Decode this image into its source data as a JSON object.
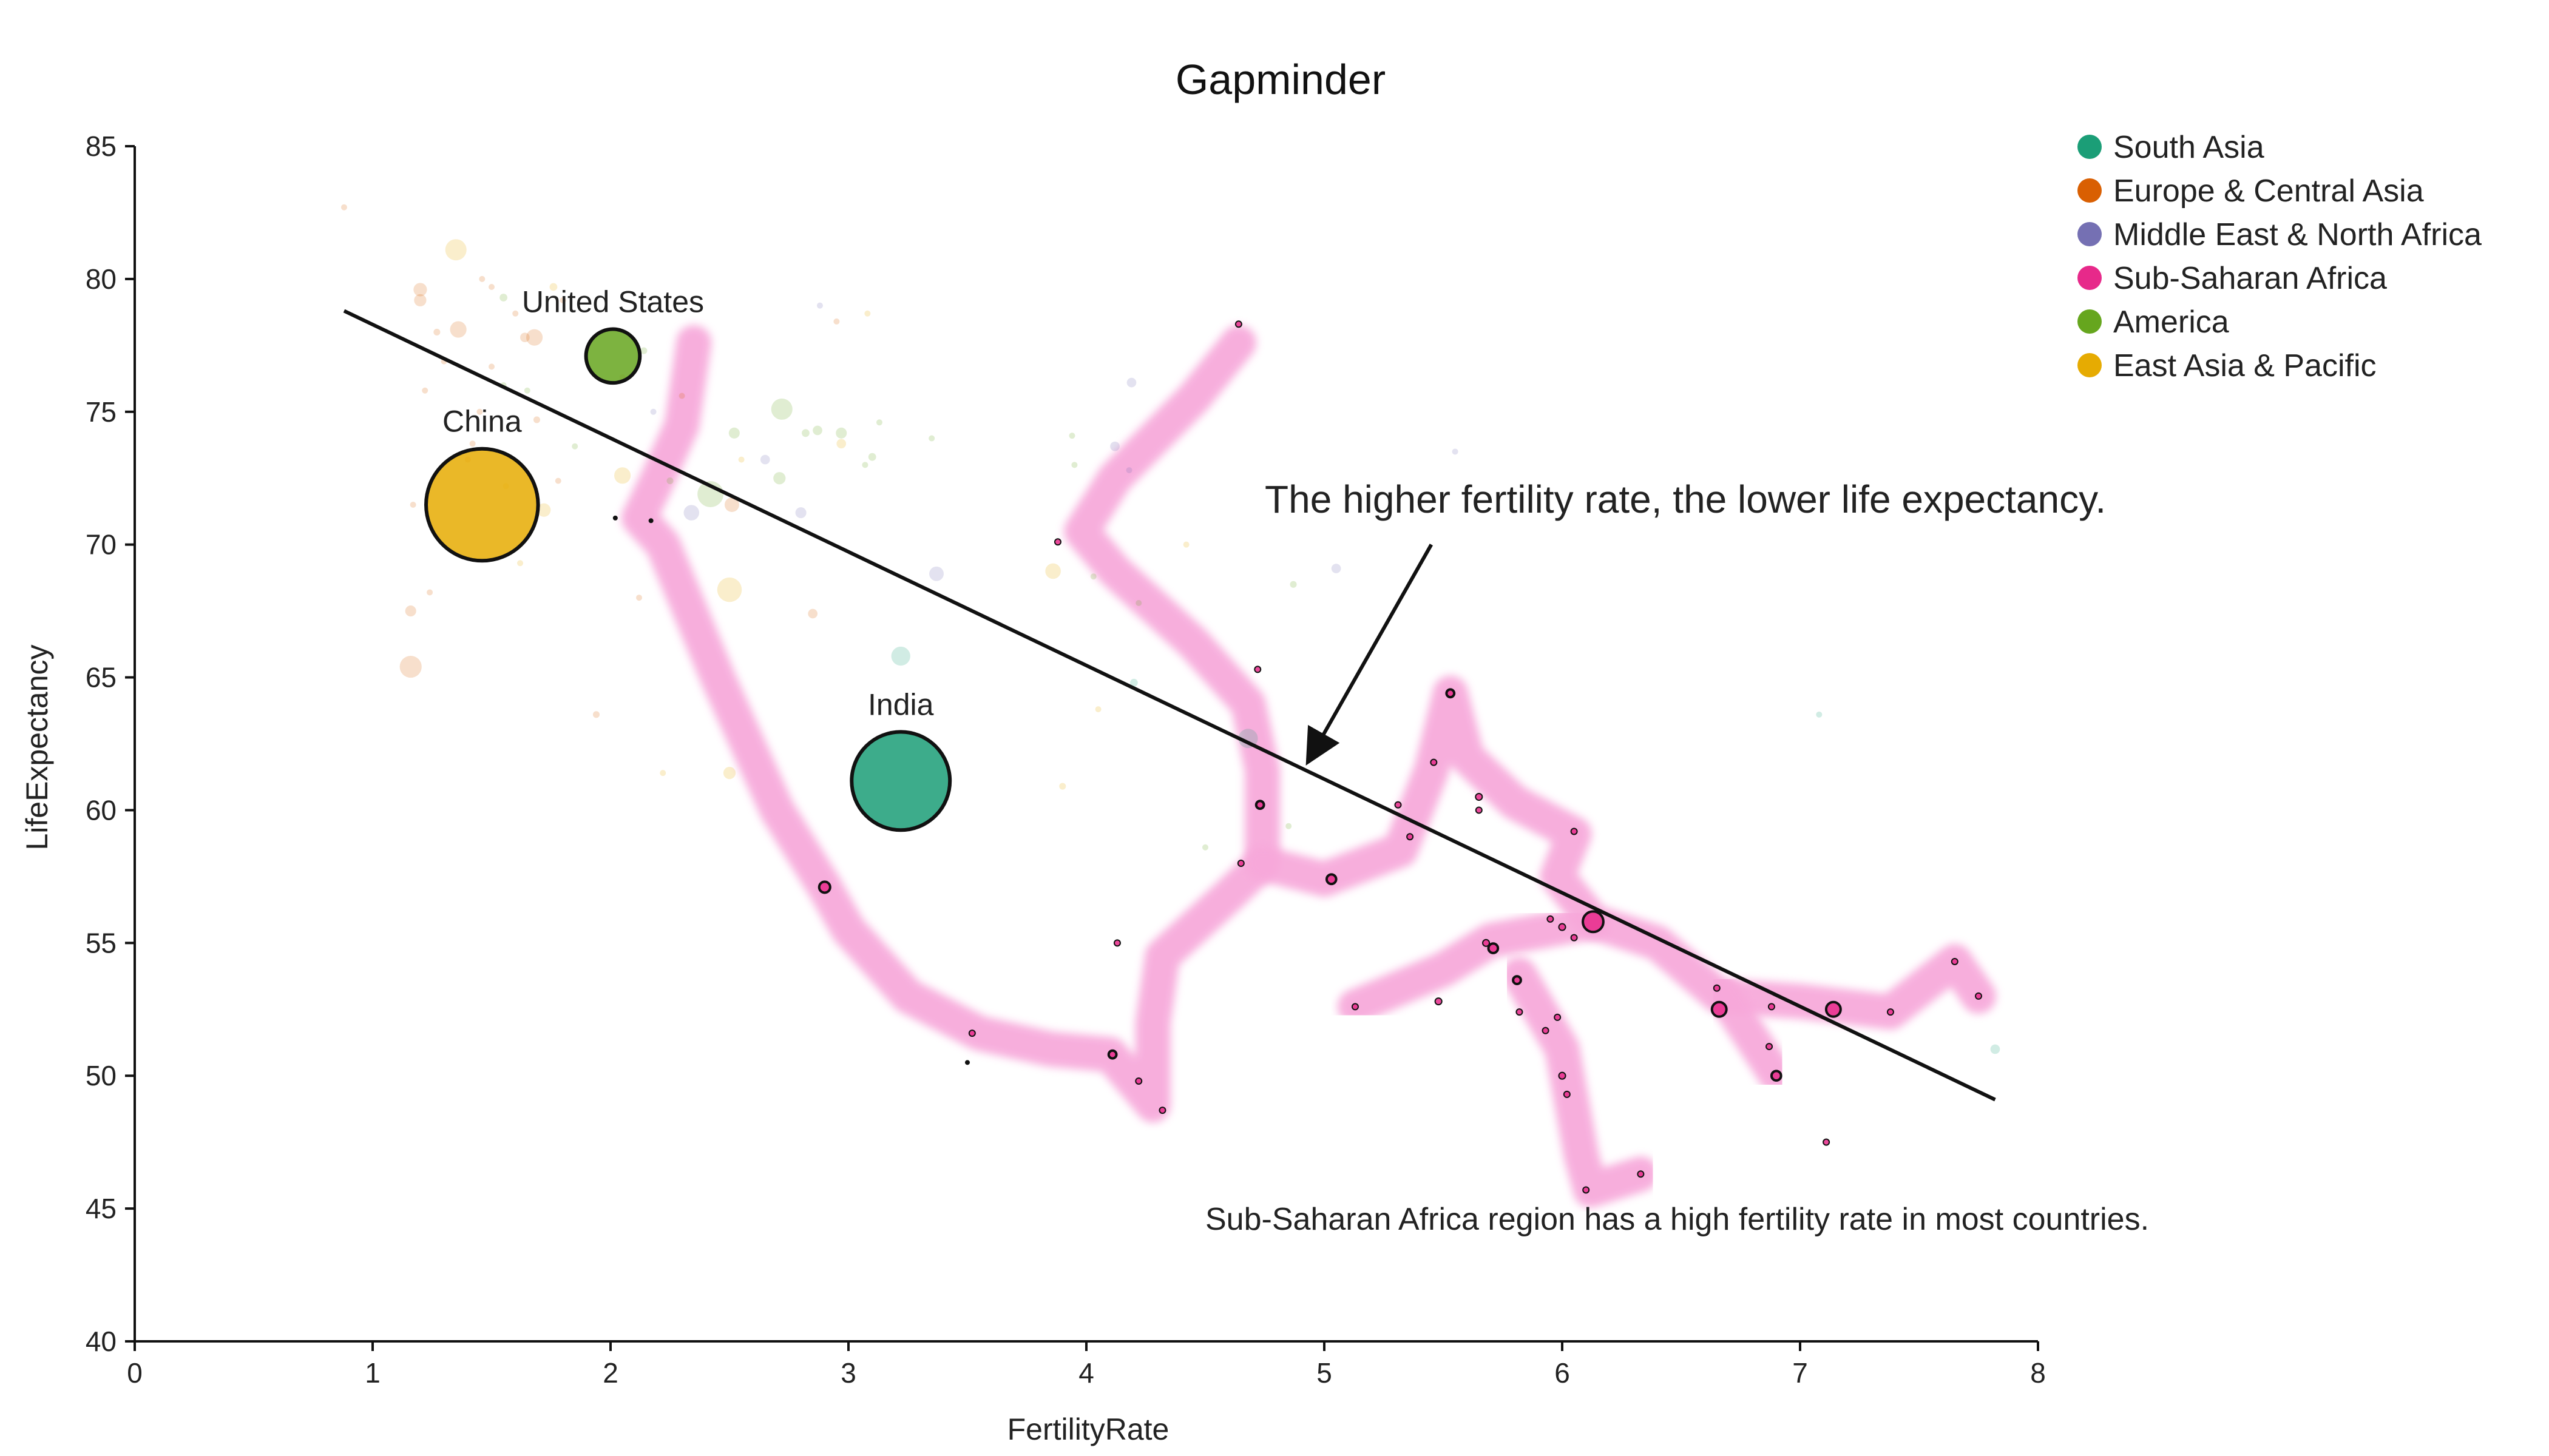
{
  "chart_data": {
    "type": "scatter",
    "title": "Gapminder",
    "xlabel": "FertilityRate",
    "ylabel": "LifeExpectancy",
    "xlim": [
      0,
      8
    ],
    "ylim": [
      40,
      85
    ],
    "xticks": [
      0,
      1,
      2,
      3,
      4,
      5,
      6,
      7,
      8
    ],
    "yticks": [
      40,
      45,
      50,
      55,
      60,
      65,
      70,
      75,
      80,
      85
    ],
    "grid": false,
    "legend_position": "top-right",
    "legend": [
      {
        "name": "South Asia",
        "color": "#1b9e77"
      },
      {
        "name": "Europe & Central Asia",
        "color": "#d95f02"
      },
      {
        "name": "Middle East & North Africa",
        "color": "#7570b3"
      },
      {
        "name": "Sub-Saharan Africa",
        "color": "#e7298a"
      },
      {
        "name": "America",
        "color": "#66a61e"
      },
      {
        "name": "East Asia & Pacific",
        "color": "#e6ab02"
      }
    ],
    "highlighted": [
      {
        "label": "United States",
        "region": "America",
        "x": 2.01,
        "y": 77.1,
        "pop": 300
      },
      {
        "label": "China",
        "region": "East Asia & Pacific",
        "x": 1.46,
        "y": 71.5,
        "pop": 1300
      },
      {
        "label": "India",
        "region": "South Asia",
        "x": 3.22,
        "y": 61.1,
        "pop": 1000
      }
    ],
    "africa_points": [
      [
        2.9,
        57.1,
        8
      ],
      [
        3.52,
        51.6,
        1
      ],
      [
        4.11,
        50.8,
        4
      ],
      [
        4.13,
        55.0,
        1
      ],
      [
        4.22,
        49.8,
        1
      ],
      [
        4.32,
        48.7,
        1
      ],
      [
        3.88,
        70.1,
        1
      ],
      [
        4.64,
        78.3,
        1
      ],
      [
        4.65,
        58.0,
        1
      ],
      [
        4.72,
        65.3,
        1
      ],
      [
        4.73,
        60.2,
        4
      ],
      [
        5.03,
        57.4,
        6
      ],
      [
        5.13,
        52.6,
        1
      ],
      [
        5.31,
        60.2,
        1
      ],
      [
        5.36,
        59.0,
        1
      ],
      [
        5.46,
        61.8,
        1
      ],
      [
        5.48,
        52.8,
        3
      ],
      [
        5.53,
        64.4,
        4
      ],
      [
        5.65,
        60.5,
        3
      ],
      [
        5.65,
        60.0,
        1
      ],
      [
        5.68,
        55.0,
        3
      ],
      [
        5.71,
        54.8,
        6
      ],
      [
        5.81,
        53.6,
        4
      ],
      [
        5.82,
        52.4,
        1
      ],
      [
        5.93,
        51.7,
        1
      ],
      [
        5.95,
        55.9,
        1
      ],
      [
        5.98,
        52.2,
        1
      ],
      [
        6.0,
        55.6,
        3
      ],
      [
        6.0,
        50.0,
        3
      ],
      [
        6.02,
        49.3,
        1
      ],
      [
        6.05,
        59.2,
        1
      ],
      [
        6.05,
        55.2,
        1
      ],
      [
        6.13,
        55.8,
        28
      ],
      [
        6.1,
        45.7,
        2
      ],
      [
        6.33,
        46.3,
        2
      ],
      [
        6.65,
        53.3,
        2
      ],
      [
        6.66,
        52.5,
        14
      ],
      [
        6.87,
        51.1,
        2
      ],
      [
        6.88,
        52.6,
        2
      ],
      [
        6.9,
        50.0,
        6
      ],
      [
        7.11,
        47.5,
        1
      ],
      [
        7.14,
        52.5,
        14
      ],
      [
        7.38,
        52.4,
        1
      ],
      [
        7.65,
        54.3,
        1
      ],
      [
        7.75,
        53.0,
        1
      ]
    ],
    "faded_points": [
      [
        0.88,
        82.7,
        1,
        "Europe & Central Asia"
      ],
      [
        1.35,
        81.1,
        30,
        "East Asia & Pacific"
      ],
      [
        1.2,
        79.6,
        12,
        "Europe & Central Asia"
      ],
      [
        1.2,
        79.2,
        10,
        "Europe & Central Asia"
      ],
      [
        1.36,
        78.1,
        18,
        "Europe & Central Asia"
      ],
      [
        1.27,
        78.0,
        3,
        "Europe & Central Asia"
      ],
      [
        1.46,
        80.0,
        2,
        "Europe & Central Asia"
      ],
      [
        1.5,
        79.7,
        2,
        "Europe & Central Asia"
      ],
      [
        1.55,
        79.3,
        4,
        "America"
      ],
      [
        1.6,
        78.7,
        2,
        "Europe & Central Asia"
      ],
      [
        1.64,
        77.8,
        6,
        "Europe & Central Asia"
      ],
      [
        1.68,
        77.8,
        18,
        "Europe & Central Asia"
      ],
      [
        1.76,
        79.7,
        4,
        "East Asia & Pacific"
      ],
      [
        1.8,
        79.2,
        2,
        "Europe & Central Asia"
      ],
      [
        1.5,
        76.7,
        2,
        "Europe & Central Asia"
      ],
      [
        1.55,
        76.0,
        2,
        "America"
      ],
      [
        1.65,
        75.8,
        2,
        "America"
      ],
      [
        1.69,
        74.7,
        3,
        "Europe & Central Asia"
      ],
      [
        1.22,
        75.8,
        1,
        "Europe & Central Asia"
      ],
      [
        1.42,
        73.8,
        2,
        "Europe & Central Asia"
      ],
      [
        1.45,
        75.0,
        1,
        "Europe & Central Asia"
      ],
      [
        1.56,
        72.2,
        1,
        "East Asia & Pacific"
      ],
      [
        1.72,
        71.3,
        12,
        "East Asia & Pacific"
      ],
      [
        1.78,
        72.4,
        2,
        "Europe & Central Asia"
      ],
      [
        1.62,
        69.3,
        1,
        "East Asia & Pacific"
      ],
      [
        1.17,
        71.5,
        1,
        "Europe & Central Asia"
      ],
      [
        1.24,
        68.2,
        2,
        "Europe & Central Asia"
      ],
      [
        1.16,
        67.5,
        8,
        "Europe & Central Asia"
      ],
      [
        1.16,
        65.4,
        32,
        "Europe & Central Asia"
      ],
      [
        1.94,
        63.6,
        3,
        "Europe & Central Asia"
      ],
      [
        2.05,
        72.6,
        18,
        "East Asia & Pacific"
      ],
      [
        2.12,
        68.0,
        2,
        "Europe & Central Asia"
      ],
      [
        2.14,
        77.3,
        3,
        "America"
      ],
      [
        2.18,
        75.0,
        2,
        "Middle East & North Africa"
      ],
      [
        2.3,
        75.6,
        2,
        "Europe & Central Asia"
      ],
      [
        2.25,
        72.4,
        3,
        "America"
      ],
      [
        2.34,
        71.2,
        16,
        "Middle East & North Africa"
      ],
      [
        2.42,
        71.9,
        45,
        "America"
      ],
      [
        2.51,
        71.5,
        14,
        "Europe & Central Asia"
      ],
      [
        2.5,
        68.3,
        40,
        "East Asia & Pacific"
      ],
      [
        2.52,
        74.2,
        8,
        "America"
      ],
      [
        2.55,
        73.2,
        2,
        "East Asia & Pacific"
      ],
      [
        2.65,
        73.2,
        6,
        "Middle East & North Africa"
      ],
      [
        2.71,
        72.5,
        10,
        "America"
      ],
      [
        2.72,
        75.1,
        30,
        "America"
      ],
      [
        2.82,
        74.2,
        4,
        "America"
      ],
      [
        2.87,
        74.3,
        6,
        "America"
      ],
      [
        2.8,
        71.2,
        8,
        "Middle East & North Africa"
      ],
      [
        2.85,
        67.4,
        6,
        "Europe & Central Asia"
      ],
      [
        2.97,
        74.2,
        8,
        "America"
      ],
      [
        2.97,
        73.8,
        6,
        "East Asia & Pacific"
      ],
      [
        3.07,
        73.0,
        2,
        "America"
      ],
      [
        3.1,
        73.3,
        4,
        "America"
      ],
      [
        3.08,
        78.7,
        2,
        "East Asia & Pacific"
      ],
      [
        3.13,
        74.6,
        2,
        "America"
      ],
      [
        3.22,
        65.8,
        24,
        "South Asia"
      ],
      [
        3.37,
        68.9,
        14,
        "Middle East & North Africa"
      ],
      [
        3.35,
        74.0,
        2,
        "America"
      ],
      [
        2.5,
        61.4,
        10,
        "East Asia & Pacific"
      ],
      [
        2.22,
        61.4,
        1,
        "East Asia & Pacific"
      ],
      [
        3.9,
        60.9,
        3,
        "East Asia & Pacific"
      ],
      [
        3.86,
        69.0,
        16,
        "East Asia & Pacific"
      ],
      [
        3.94,
        74.1,
        2,
        "America"
      ],
      [
        4.03,
        68.8,
        2,
        "America"
      ],
      [
        4.05,
        63.8,
        1,
        "East Asia & Pacific"
      ],
      [
        4.18,
        72.8,
        2,
        "Middle East & North Africa"
      ],
      [
        4.12,
        73.7,
        6,
        "Middle East & North Africa"
      ],
      [
        4.19,
        76.1,
        6,
        "Middle East & North Africa"
      ],
      [
        4.22,
        67.8,
        2,
        "America"
      ],
      [
        4.2,
        64.8,
        4,
        "South Asia"
      ],
      [
        4.42,
        70.0,
        2,
        "East Asia & Pacific"
      ],
      [
        4.68,
        62.7,
        25,
        "South Asia"
      ],
      [
        4.5,
        58.6,
        2,
        "America"
      ],
      [
        4.85,
        59.4,
        2,
        "America"
      ],
      [
        4.87,
        68.5,
        3,
        "America"
      ],
      [
        5.05,
        69.1,
        6,
        "Middle East & North Africa"
      ],
      [
        5.55,
        73.5,
        1,
        "Middle East & North Africa"
      ],
      [
        7.08,
        63.6,
        1,
        "South Asia"
      ],
      [
        7.82,
        51.0,
        6,
        "South Asia"
      ],
      [
        2.88,
        79.0,
        2,
        "Middle East & North Africa"
      ],
      [
        2.95,
        78.4,
        1,
        "Europe & Central Asia"
      ],
      [
        2.05,
        76.3,
        2,
        "Europe & Central Asia"
      ],
      [
        1.4,
        73.2,
        1,
        "Europe & Central Asia"
      ],
      [
        3.95,
        73.0,
        1,
        "America"
      ],
      [
        1.3,
        76.9,
        1,
        "Europe & Central Asia"
      ],
      [
        1.85,
        73.7,
        1,
        "America"
      ]
    ],
    "dark_dots": [
      [
        2.02,
        71.0
      ],
      [
        2.17,
        70.9
      ],
      [
        3.5,
        50.5
      ]
    ],
    "trend_line": {
      "x1": 0.88,
      "y1": 78.8,
      "x2": 7.82,
      "y2": 49.1
    },
    "highlight_path": [
      [
        [
          2.35,
          77.6
        ],
        [
          2.3,
          74.5
        ],
        [
          2.2,
          72.5
        ],
        [
          2.12,
          71.0
        ],
        [
          2.22,
          70.0
        ],
        [
          2.45,
          65.0
        ],
        [
          2.7,
          60.0
        ],
        [
          2.9,
          57.1
        ],
        [
          3.0,
          55.5
        ],
        [
          3.25,
          53.0
        ],
        [
          3.55,
          51.6
        ],
        [
          3.85,
          51.0
        ],
        [
          4.1,
          50.8
        ],
        [
          4.28,
          48.9
        ],
        [
          4.28,
          52.0
        ],
        [
          4.32,
          54.5
        ],
        [
          4.6,
          56.8
        ],
        [
          4.74,
          58.0
        ],
        [
          4.74,
          61.5
        ],
        [
          4.68,
          64.0
        ],
        [
          4.45,
          66.3
        ],
        [
          4.12,
          69.0
        ],
        [
          3.98,
          70.5
        ],
        [
          4.12,
          72.5
        ],
        [
          4.45,
          75.5
        ],
        [
          4.64,
          77.6
        ]
      ],
      [
        [
          4.74,
          58.0
        ],
        [
          5.0,
          57.4
        ],
        [
          5.32,
          58.5
        ],
        [
          5.45,
          61.5
        ],
        [
          5.53,
          64.4
        ],
        [
          5.6,
          62.0
        ],
        [
          5.8,
          60.3
        ],
        [
          6.05,
          59.1
        ],
        [
          5.98,
          57.5
        ],
        [
          6.13,
          55.8
        ],
        [
          6.4,
          55.0
        ],
        [
          6.66,
          53.0
        ],
        [
          7.0,
          52.8
        ],
        [
          7.38,
          52.4
        ],
        [
          7.65,
          54.3
        ],
        [
          7.75,
          53.0
        ]
      ],
      [
        [
          6.13,
          55.8
        ],
        [
          5.7,
          55.1
        ],
        [
          5.5,
          54.0
        ],
        [
          5.13,
          52.6
        ]
      ],
      [
        [
          5.82,
          53.8
        ],
        [
          6.0,
          51.0
        ],
        [
          6.08,
          47.0
        ],
        [
          6.12,
          45.7
        ],
        [
          6.33,
          46.3
        ]
      ],
      [
        [
          6.66,
          53.3
        ],
        [
          6.9,
          50.0
        ]
      ]
    ],
    "annotations": [
      {
        "text": "The higher fertility rate, the lower life expectancy.",
        "x": 4.75,
        "y": 71.2,
        "arrow_from": [
          5.45,
          70.0
        ],
        "arrow_to": [
          4.93,
          61.8
        ]
      },
      {
        "text": "Sub-Saharan Africa region has a high fertility rate in most countries.",
        "x": 4.5,
        "y": 44.2
      }
    ]
  }
}
